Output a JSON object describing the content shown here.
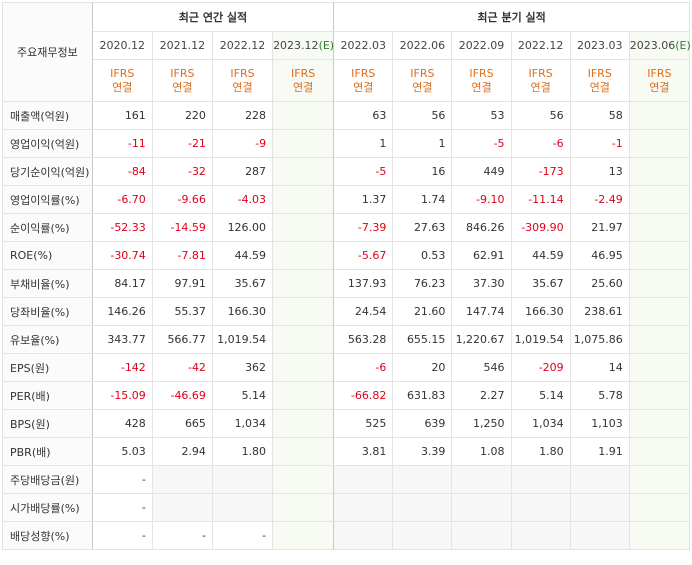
{
  "header": {
    "corner_label": "주요재무정보",
    "annual_group": "최근 연간 실적",
    "quarter_group": "최근 분기 실적",
    "annual_periods": [
      "2020.12",
      "2021.12",
      "2022.12",
      "2023.12"
    ],
    "annual_estimate_mark": "(E)",
    "quarter_periods": [
      "2022.03",
      "2022.06",
      "2022.09",
      "2022.12",
      "2023.03",
      "2023.06"
    ],
    "quarter_estimate_mark": "(E)",
    "ifrs_line1": "IFRS",
    "ifrs_line2": "연결"
  },
  "rows": [
    {
      "label": "매출액(억원)",
      "values": [
        "161",
        "220",
        "228",
        "",
        "63",
        "56",
        "53",
        "56",
        "58",
        ""
      ]
    },
    {
      "label": "영업이익(억원)",
      "values": [
        "-11",
        "-21",
        "-9",
        "",
        "1",
        "1",
        "-5",
        "-6",
        "-1",
        ""
      ]
    },
    {
      "label": "당기순이익(억원)",
      "values": [
        "-84",
        "-32",
        "287",
        "",
        "-5",
        "16",
        "449",
        "-173",
        "13",
        ""
      ]
    },
    {
      "label": "영업이익률(%)",
      "values": [
        "-6.70",
        "-9.66",
        "-4.03",
        "",
        "1.37",
        "1.74",
        "-9.10",
        "-11.14",
        "-2.49",
        ""
      ]
    },
    {
      "label": "순이익률(%)",
      "values": [
        "-52.33",
        "-14.59",
        "126.00",
        "",
        "-7.39",
        "27.63",
        "846.26",
        "-309.90",
        "21.97",
        ""
      ]
    },
    {
      "label": "ROE(%)",
      "values": [
        "-30.74",
        "-7.81",
        "44.59",
        "",
        "-5.67",
        "0.53",
        "62.91",
        "44.59",
        "46.95",
        ""
      ]
    },
    {
      "label": "부채비율(%)",
      "values": [
        "84.17",
        "97.91",
        "35.67",
        "",
        "137.93",
        "76.23",
        "37.30",
        "35.67",
        "25.60",
        ""
      ]
    },
    {
      "label": "당좌비율(%)",
      "values": [
        "146.26",
        "55.37",
        "166.30",
        "",
        "24.54",
        "21.60",
        "147.74",
        "166.30",
        "238.61",
        ""
      ]
    },
    {
      "label": "유보율(%)",
      "values": [
        "343.77",
        "566.77",
        "1,019.54",
        "",
        "563.28",
        "655.15",
        "1,220.67",
        "1,019.54",
        "1,075.86",
        ""
      ]
    },
    {
      "label": "EPS(원)",
      "values": [
        "-142",
        "-42",
        "362",
        "",
        "-6",
        "20",
        "546",
        "-209",
        "14",
        ""
      ]
    },
    {
      "label": "PER(배)",
      "values": [
        "-15.09",
        "-46.69",
        "5.14",
        "",
        "-66.82",
        "631.83",
        "2.27",
        "5.14",
        "5.78",
        ""
      ]
    },
    {
      "label": "BPS(원)",
      "values": [
        "428",
        "665",
        "1,034",
        "",
        "525",
        "639",
        "1,250",
        "1,034",
        "1,103",
        ""
      ]
    },
    {
      "label": "PBR(배)",
      "values": [
        "5.03",
        "2.94",
        "1.80",
        "",
        "3.81",
        "3.39",
        "1.08",
        "1.80",
        "1.91",
        ""
      ]
    },
    {
      "label": "주당배당금(원)",
      "values": [
        "-",
        "",
        "",
        "",
        "",
        "",
        "",
        "",
        "",
        ""
      ]
    },
    {
      "label": "시가배당률(%)",
      "values": [
        "-",
        "",
        "",
        "",
        "",
        "",
        "",
        "",
        "",
        ""
      ]
    },
    {
      "label": "배당성향(%)",
      "values": [
        "-",
        "-",
        "-",
        "",
        "",
        "",
        "",
        "",
        "",
        ""
      ]
    }
  ]
}
